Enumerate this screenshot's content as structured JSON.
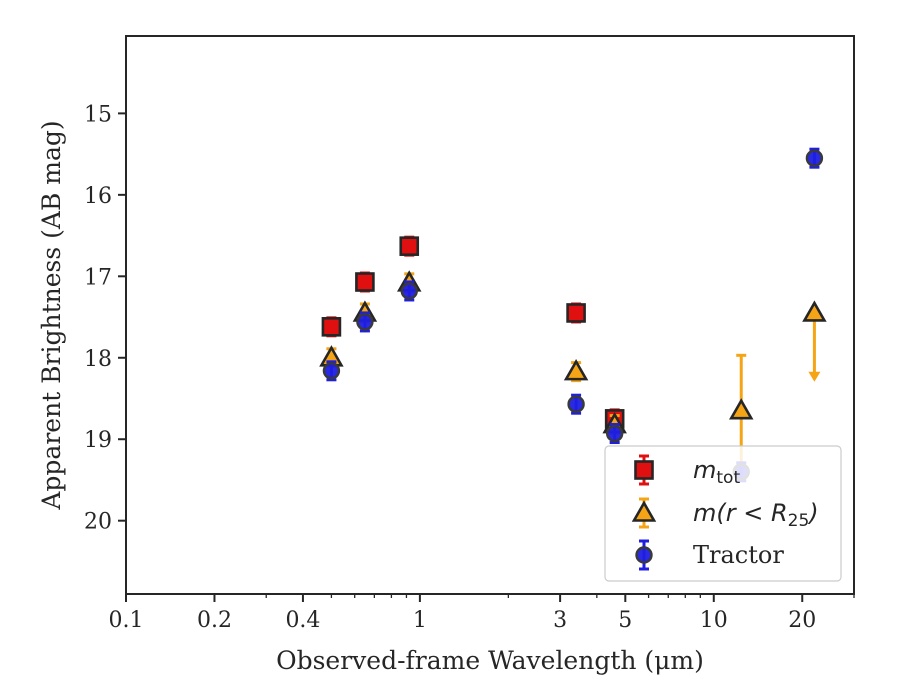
{
  "chart_data": {
    "type": "scatter",
    "xscale": "log",
    "yinverted": true,
    "xlabel": "Observed-frame Wavelength (μm)",
    "ylabel": "Apparent Brightness (AB mag)",
    "xlim": [
      0.1,
      30
    ],
    "ylim": [
      20.9,
      14.05
    ],
    "xticks": [
      0.1,
      0.2,
      0.4,
      1,
      3,
      5,
      10,
      20
    ],
    "xtick_labels": [
      "0.1",
      "0.2",
      "0.4",
      "1",
      "3",
      "5",
      "10",
      "20"
    ],
    "yticks": [
      15,
      16,
      17,
      18,
      19,
      20
    ],
    "ytick_labels": [
      "15",
      "16",
      "17",
      "18",
      "19",
      "20"
    ],
    "legend_position": "lower-right",
    "series": [
      {
        "name": "m_tot",
        "legend_main": "m",
        "legend_sub": "tot",
        "marker": "square",
        "color": "#e01010",
        "points": [
          {
            "x": 0.5,
            "y": 17.62
          },
          {
            "x": 0.65,
            "y": 17.07
          },
          {
            "x": 0.92,
            "y": 16.63
          },
          {
            "x": 3.4,
            "y": 17.45
          },
          {
            "x": 4.6,
            "y": 18.75
          }
        ]
      },
      {
        "name": "m(r < R25)",
        "legend_main": "m(r < R",
        "legend_sub": "25",
        "legend_tail": ")",
        "marker": "triangle",
        "color": "#f5a416",
        "points": [
          {
            "x": 0.5,
            "y": 18.0
          },
          {
            "x": 0.65,
            "y": 17.45
          },
          {
            "x": 0.92,
            "y": 17.08
          },
          {
            "x": 3.4,
            "y": 18.17
          },
          {
            "x": 4.6,
            "y": 18.82
          },
          {
            "x": 12.4,
            "y": 18.65,
            "err_low": 17.97,
            "err_high": 19.35
          },
          {
            "x": 22.0,
            "y": 17.45,
            "upper_limit_to": 18.27
          }
        ]
      },
      {
        "name": "Tractor",
        "legend_main": "Tractor",
        "marker": "circle",
        "color": "#1f1fe0",
        "points": [
          {
            "x": 0.5,
            "y": 18.16
          },
          {
            "x": 0.65,
            "y": 17.56
          },
          {
            "x": 0.92,
            "y": 17.18
          },
          {
            "x": 3.4,
            "y": 18.57
          },
          {
            "x": 4.6,
            "y": 18.93
          },
          {
            "x": 12.4,
            "y": 19.4
          },
          {
            "x": 22.0,
            "y": 15.55
          }
        ]
      }
    ]
  }
}
